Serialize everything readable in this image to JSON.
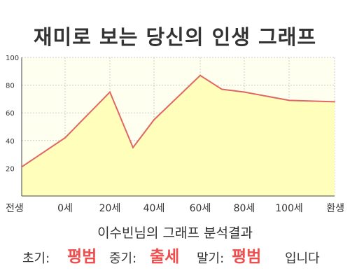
{
  "title": "재미로 보는 당신의 인생 그래프",
  "chart_data": {
    "type": "area",
    "title": "재미로 보는 당신의 인생 그래프",
    "x_tick_labels": [
      "전생",
      "0세",
      "20세",
      "40세",
      "60세",
      "80세",
      "100세",
      "환생"
    ],
    "x": [
      "전생",
      "0세",
      "20세",
      "30세",
      "40세",
      "60세",
      "70세",
      "80세",
      "100세",
      "환생"
    ],
    "values": [
      21,
      42,
      75,
      35,
      55,
      87,
      77,
      75,
      69,
      68
    ],
    "ylim": [
      0,
      100
    ],
    "y_ticks": [
      20,
      40,
      60,
      80,
      100
    ],
    "grid": true,
    "line_color": "#e06666",
    "fill_color": "#ffffbb",
    "background_color": "#fffff0"
  },
  "result": {
    "heading": "이수빈님의 그래프 분석결과",
    "early_label": "초기:",
    "early_value": "평범",
    "middle_label": "중기:",
    "middle_value": "출세",
    "late_label": "말기:",
    "late_value": "평범",
    "ending": "입니다",
    "accent_color": "#ee4e4e"
  }
}
